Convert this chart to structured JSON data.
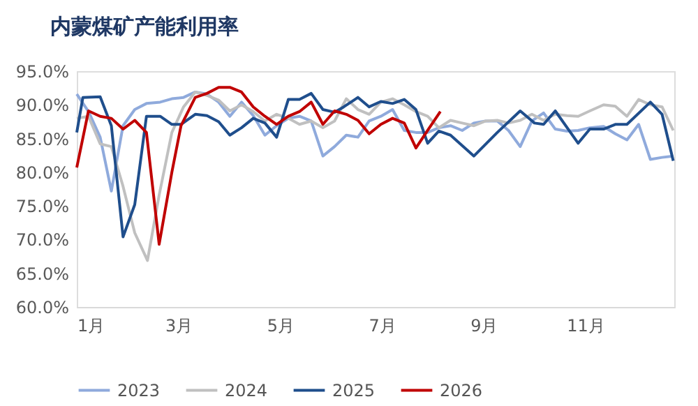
{
  "chart_data": {
    "type": "line",
    "title": "内蒙煤矿产能利用率",
    "xlim": [
      1,
      12.75
    ],
    "xticks": [
      {
        "value": 1,
        "label": "1月"
      },
      {
        "value": 3,
        "label": "3月"
      },
      {
        "value": 5,
        "label": "5月"
      },
      {
        "value": 7,
        "label": "7月"
      },
      {
        "value": 9,
        "label": "9月"
      },
      {
        "value": 11,
        "label": "11月"
      }
    ],
    "ylim": [
      60,
      95
    ],
    "yticks": [
      {
        "value": 60,
        "label": "60.0%"
      },
      {
        "value": 65,
        "label": "65.0%"
      },
      {
        "value": 70,
        "label": "70.0%"
      },
      {
        "value": 75,
        "label": "75.0%"
      },
      {
        "value": 80,
        "label": "80.0%"
      },
      {
        "value": 85,
        "label": "85.0%"
      },
      {
        "value": 90,
        "label": "90.0%"
      },
      {
        "value": 95,
        "label": "95.0%"
      }
    ],
    "grid": false,
    "legend": "bottom",
    "marker": "none",
    "line_style": "solid",
    "series": [
      {
        "name": "2023",
        "color": "#8faadc",
        "x": [
          1.0,
          1.23,
          1.46,
          1.68,
          1.91,
          2.14,
          2.37,
          2.64,
          2.87,
          3.1,
          3.33,
          3.56,
          3.79,
          4.01,
          4.24,
          4.47,
          4.7,
          4.93,
          5.16,
          5.38,
          5.61,
          5.84,
          6.07,
          6.3,
          6.53,
          6.75,
          6.98,
          7.21,
          7.44,
          7.67,
          7.9,
          8.12,
          8.35,
          8.58,
          8.81,
          9.04,
          9.27,
          9.49,
          9.72,
          9.95,
          10.18,
          10.41,
          10.64,
          10.86,
          11.09,
          11.36,
          11.59,
          11.82,
          12.05,
          12.28,
          12.51,
          12.73
        ],
        "values": [
          91.6,
          89.0,
          85.2,
          77.2,
          86.9,
          89.3,
          90.2,
          90.4,
          90.9,
          91.1,
          91.9,
          91.6,
          90.4,
          88.3,
          90.4,
          88.4,
          85.5,
          86.9,
          88.0,
          88.3,
          87.6,
          82.4,
          83.8,
          85.5,
          85.2,
          87.6,
          88.3,
          89.3,
          86.2,
          85.9,
          85.9,
          86.6,
          86.9,
          86.2,
          87.3,
          87.6,
          87.6,
          86.2,
          83.8,
          87.6,
          88.8,
          86.4,
          86.1,
          86.2,
          86.6,
          86.8,
          85.7,
          84.8,
          87.1,
          81.9,
          82.2,
          82.4
        ]
      },
      {
        "name": "2024",
        "color": "#c0c0c0",
        "x": [
          1.0,
          1.23,
          1.46,
          1.68,
          1.91,
          2.14,
          2.39,
          2.62,
          2.87,
          3.1,
          3.33,
          3.56,
          3.79,
          4.01,
          4.24,
          4.47,
          4.7,
          4.93,
          5.16,
          5.38,
          5.61,
          5.84,
          6.07,
          6.3,
          6.53,
          6.75,
          6.98,
          7.21,
          7.44,
          7.67,
          7.9,
          8.12,
          8.35,
          8.58,
          8.81,
          9.04,
          9.27,
          9.49,
          9.72,
          9.95,
          10.18,
          10.41,
          10.64,
          10.86,
          11.09,
          11.36,
          11.59,
          11.82,
          12.05,
          12.28,
          12.51,
          12.73
        ],
        "values": [
          88.0,
          88.3,
          84.2,
          83.8,
          77.9,
          71.0,
          66.9,
          76.6,
          85.9,
          89.7,
          91.9,
          91.4,
          90.7,
          89.1,
          90.0,
          89.0,
          87.6,
          88.6,
          88.0,
          87.1,
          87.6,
          86.6,
          87.6,
          90.9,
          89.3,
          88.6,
          90.4,
          90.9,
          90.0,
          89.0,
          88.3,
          86.6,
          87.7,
          87.3,
          86.9,
          87.6,
          87.7,
          87.3,
          87.7,
          88.6,
          87.7,
          88.6,
          88.4,
          88.3,
          89.1,
          90.0,
          89.8,
          88.3,
          90.8,
          90.0,
          89.7,
          86.2
        ]
      },
      {
        "name": "2025",
        "color": "#1f4e8c",
        "x": [
          1.0,
          1.12,
          1.46,
          1.68,
          1.91,
          2.14,
          2.37,
          2.64,
          2.87,
          3.05,
          3.33,
          3.56,
          3.79,
          4.01,
          4.24,
          4.47,
          4.7,
          4.93,
          5.16,
          5.38,
          5.61,
          5.84,
          6.07,
          6.25,
          6.53,
          6.75,
          6.98,
          7.21,
          7.44,
          7.67,
          7.9,
          8.12,
          8.35,
          8.81,
          9.27,
          9.72,
          10.0,
          10.18,
          10.41,
          10.86,
          11.09,
          11.36,
          11.59,
          11.82,
          12.28,
          12.51,
          12.73
        ],
        "values": [
          85.9,
          91.1,
          91.2,
          86.9,
          70.4,
          75.2,
          88.3,
          88.3,
          87.1,
          87.1,
          88.6,
          88.4,
          87.5,
          85.5,
          86.6,
          88.0,
          87.3,
          85.2,
          90.8,
          90.8,
          91.7,
          89.3,
          88.9,
          89.7,
          91.1,
          89.7,
          90.5,
          90.2,
          90.8,
          89.3,
          84.3,
          86.1,
          85.5,
          82.4,
          85.9,
          89.1,
          87.3,
          87.1,
          89.1,
          84.3,
          86.4,
          86.4,
          87.1,
          87.1,
          90.4,
          88.6,
          81.7
        ]
      },
      {
        "name": "2026",
        "color": "#c00000",
        "x": [
          1.0,
          1.23,
          1.46,
          1.68,
          1.91,
          2.14,
          2.37,
          2.62,
          2.87,
          3.05,
          3.33,
          3.56,
          3.79,
          4.01,
          4.24,
          4.47,
          4.7,
          4.93,
          5.16,
          5.38,
          5.61,
          5.84,
          6.07,
          6.3,
          6.53,
          6.75,
          6.98,
          7.21,
          7.44,
          7.67,
          7.9,
          8.15
        ],
        "values": [
          80.7,
          89.1,
          88.3,
          88.0,
          86.4,
          87.7,
          85.9,
          69.3,
          80.0,
          86.9,
          91.1,
          91.7,
          92.6,
          92.6,
          91.9,
          89.7,
          88.3,
          87.1,
          88.3,
          89.0,
          90.4,
          87.1,
          89.1,
          88.6,
          87.7,
          85.7,
          87.1,
          88.0,
          87.3,
          83.6,
          86.2,
          89.0
        ]
      }
    ]
  }
}
